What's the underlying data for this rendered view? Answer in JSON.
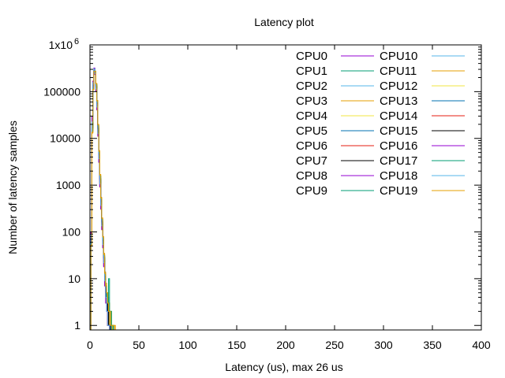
{
  "chart_data": {
    "type": "line",
    "title": "Latency plot",
    "xlabel": "Latency (us), max 26 us",
    "ylabel": "Number of latency samples",
    "xlim": [
      0,
      400
    ],
    "ylim": [
      0.8,
      1000000
    ],
    "yscale": "log",
    "grid": false,
    "legend_position": "top-right",
    "x_ticks": [
      {
        "value": 0,
        "label": "0"
      },
      {
        "value": 50,
        "label": "50"
      },
      {
        "value": 100,
        "label": "100"
      },
      {
        "value": 150,
        "label": "150"
      },
      {
        "value": 200,
        "label": "200"
      },
      {
        "value": 250,
        "label": "250"
      },
      {
        "value": 300,
        "label": "300"
      },
      {
        "value": 350,
        "label": "350"
      },
      {
        "value": 400,
        "label": "400"
      }
    ],
    "y_ticks": [
      {
        "value": 1,
        "label": "1"
      },
      {
        "value": 10,
        "label": "10"
      },
      {
        "value": 100,
        "label": "100"
      },
      {
        "value": 1000,
        "label": "1000"
      },
      {
        "value": 10000,
        "label": "10000"
      },
      {
        "value": 100000,
        "label": "100000"
      }
    ],
    "y_top_label": {
      "value": 1000000,
      "base": "1x10",
      "exp": "6"
    },
    "series": [
      {
        "name": "CPU0",
        "color": "#9400d3",
        "x": [
          0,
          1,
          2,
          3,
          4,
          5,
          6,
          7,
          8,
          9,
          10,
          11,
          12,
          13,
          14,
          15,
          16,
          17,
          18,
          19,
          20,
          21
        ],
        "y": [
          0,
          80,
          20000,
          150000,
          300000,
          250000,
          120000,
          50000,
          15000,
          4000,
          1200,
          400,
          150,
          60,
          25,
          10,
          5,
          3,
          2,
          1,
          1,
          0
        ]
      },
      {
        "name": "CPU1",
        "color": "#009e73",
        "x": [
          0,
          1,
          2,
          3,
          4,
          5,
          6,
          7,
          8,
          9,
          10,
          11,
          12,
          13,
          14,
          15,
          16,
          17,
          18,
          19,
          20,
          21,
          22
        ],
        "y": [
          0,
          60,
          15000,
          120000,
          280000,
          260000,
          130000,
          60000,
          18000,
          5000,
          1500,
          500,
          180,
          70,
          30,
          12,
          6,
          4,
          2,
          2,
          1,
          1,
          0
        ]
      },
      {
        "name": "CPU2",
        "color": "#56b4e9",
        "x": [
          0,
          1,
          2,
          3,
          4,
          5,
          6,
          7,
          8,
          9,
          10,
          11,
          12,
          13,
          14,
          15,
          16,
          17,
          18,
          19,
          20
        ],
        "y": [
          0,
          90,
          25000,
          160000,
          320000,
          240000,
          110000,
          45000,
          12000,
          3500,
          1000,
          350,
          120,
          50,
          20,
          8,
          4,
          2,
          1,
          1,
          0
        ]
      },
      {
        "name": "CPU3",
        "color": "#e69f00",
        "x": [
          0,
          1,
          2,
          3,
          4,
          5,
          6,
          7,
          8,
          9,
          10,
          11,
          12,
          13,
          14,
          15,
          16,
          17,
          18,
          19,
          20,
          21,
          22,
          23
        ],
        "y": [
          0,
          70,
          18000,
          140000,
          300000,
          270000,
          140000,
          55000,
          16000,
          4500,
          1300,
          450,
          160,
          65,
          28,
          11,
          6,
          4,
          3,
          2,
          1,
          1,
          1,
          0
        ]
      },
      {
        "name": "CPU4",
        "color": "#f0e442",
        "x": [
          0,
          1,
          2,
          3,
          4,
          5,
          6,
          7,
          8,
          9,
          10,
          11,
          12,
          13,
          14,
          15,
          16,
          17,
          18,
          19,
          20
        ],
        "y": [
          0,
          100,
          30000,
          170000,
          310000,
          230000,
          100000,
          40000,
          11000,
          3000,
          900,
          300,
          110,
          45,
          18,
          7,
          3,
          2,
          1,
          1,
          0
        ]
      },
      {
        "name": "CPU5",
        "color": "#0072b2",
        "x": [
          0,
          1,
          2,
          3,
          4,
          5,
          6,
          7,
          8,
          9,
          10,
          11,
          12,
          13,
          14,
          15,
          16,
          17,
          18,
          19,
          20,
          21
        ],
        "y": [
          0,
          75,
          19000,
          145000,
          290000,
          255000,
          125000,
          52000,
          15500,
          4200,
          1250,
          420,
          155,
          62,
          26,
          10,
          5,
          3,
          2,
          1,
          1,
          0
        ]
      },
      {
        "name": "CPU6",
        "color": "#e51e10",
        "x": [
          0,
          1,
          2,
          3,
          4,
          5,
          6,
          7,
          8,
          9,
          10,
          11,
          12,
          13,
          14,
          15,
          16,
          17,
          18,
          19,
          20
        ],
        "y": [
          0,
          85,
          22000,
          155000,
          305000,
          245000,
          115000,
          48000,
          13000,
          3800,
          1100,
          380,
          140,
          55,
          22,
          9,
          4,
          2,
          1,
          1,
          0
        ]
      },
      {
        "name": "CPU7",
        "color": "#000000",
        "x": [
          0,
          1,
          2,
          3,
          4,
          5,
          6,
          7,
          8,
          9,
          10,
          11,
          12,
          13,
          14,
          15,
          16,
          17,
          18,
          19,
          20,
          21
        ],
        "y": [
          0,
          65,
          16000,
          130000,
          285000,
          265000,
          135000,
          58000,
          17000,
          4800,
          1400,
          480,
          170,
          68,
          29,
          11,
          5,
          3,
          2,
          1,
          1,
          0
        ]
      },
      {
        "name": "CPU8",
        "color": "#9400d3",
        "x": [
          0,
          1,
          2,
          3,
          4,
          5,
          6,
          7,
          8,
          9,
          10,
          11,
          12,
          13,
          14,
          15,
          16,
          17,
          18,
          19,
          20
        ],
        "y": [
          0,
          95,
          27000,
          165000,
          315000,
          235000,
          105000,
          42000,
          11500,
          3200,
          950,
          320,
          115,
          48,
          19,
          8,
          4,
          2,
          1,
          1,
          0
        ]
      },
      {
        "name": "CPU9",
        "color": "#009e73",
        "x": [
          0,
          1,
          2,
          3,
          4,
          5,
          6,
          7,
          8,
          9,
          10,
          11,
          12,
          13,
          14,
          15,
          16,
          17,
          18,
          19,
          20,
          21,
          22,
          23,
          24
        ],
        "y": [
          0,
          55,
          14000,
          115000,
          275000,
          270000,
          145000,
          62000,
          19000,
          5200,
          1600,
          520,
          190,
          75,
          32,
          13,
          7,
          5,
          4,
          3,
          2,
          2,
          1,
          1,
          0
        ]
      },
      {
        "name": "CPU10",
        "color": "#56b4e9",
        "x": [
          0,
          1,
          2,
          3,
          4,
          5,
          6,
          7,
          8,
          9,
          10,
          11,
          12,
          13,
          14,
          15,
          16,
          17,
          18,
          19,
          20
        ],
        "y": [
          0,
          88,
          23000,
          158000,
          308000,
          242000,
          112000,
          46000,
          12500,
          3600,
          1050,
          360,
          130,
          52,
          21,
          8,
          4,
          2,
          1,
          1,
          0
        ]
      },
      {
        "name": "CPU11",
        "color": "#e69f00",
        "x": [
          0,
          1,
          2,
          3,
          4,
          5,
          6,
          7,
          8,
          9,
          10,
          11,
          12,
          13,
          14,
          15,
          16,
          17,
          18,
          19,
          20,
          21,
          22,
          23,
          24,
          25,
          26
        ],
        "y": [
          0,
          50,
          13000,
          110000,
          270000,
          275000,
          150000,
          65000,
          20000,
          5500,
          1700,
          550,
          200,
          80,
          35,
          14,
          8,
          5,
          4,
          3,
          2,
          2,
          1,
          1,
          1,
          1,
          0
        ]
      },
      {
        "name": "CPU12",
        "color": "#f0e442",
        "x": [
          0,
          1,
          2,
          3,
          4,
          5,
          6,
          7,
          8,
          9,
          10,
          11,
          12,
          13,
          14,
          15,
          16,
          17,
          18,
          19,
          20
        ],
        "y": [
          0,
          92,
          26000,
          162000,
          312000,
          238000,
          108000,
          44000,
          12000,
          3400,
          1000,
          340,
          125,
          50,
          20,
          8,
          4,
          2,
          1,
          1,
          0
        ]
      },
      {
        "name": "CPU13",
        "color": "#0072b2",
        "x": [
          0,
          1,
          2,
          3,
          4,
          5,
          6,
          7,
          8,
          9,
          10,
          11,
          12,
          13,
          14,
          15,
          16,
          17,
          18,
          19,
          20,
          21
        ],
        "y": [
          0,
          72,
          18500,
          142000,
          295000,
          258000,
          128000,
          53000,
          15800,
          4300,
          1280,
          430,
          158,
          63,
          27,
          10,
          5,
          3,
          2,
          1,
          1,
          0
        ]
      },
      {
        "name": "CPU14",
        "color": "#e51e10",
        "x": [
          0,
          1,
          2,
          3,
          4,
          5,
          6,
          7,
          8,
          9,
          10,
          11,
          12,
          13,
          14,
          15,
          16,
          17,
          18,
          19,
          20
        ],
        "y": [
          0,
          82,
          21000,
          152000,
          302000,
          248000,
          118000,
          49000,
          13500,
          3900,
          1150,
          390,
          145,
          57,
          23,
          9,
          4,
          2,
          1,
          1,
          0
        ]
      },
      {
        "name": "CPU15",
        "color": "#000000",
        "x": [
          0,
          1,
          2,
          3,
          4,
          5,
          6,
          7,
          8,
          9,
          10,
          11,
          12,
          13,
          14,
          15,
          16,
          17,
          18,
          19,
          20,
          21
        ],
        "y": [
          0,
          68,
          17000,
          135000,
          288000,
          262000,
          132000,
          56000,
          16500,
          4600,
          1350,
          460,
          165,
          66,
          28,
          11,
          5,
          3,
          2,
          1,
          1,
          0
        ]
      },
      {
        "name": "CPU16",
        "color": "#9400d3",
        "x": [
          0,
          1,
          2,
          3,
          4,
          5,
          6,
          7,
          8,
          9,
          10,
          11,
          12,
          13,
          14,
          15,
          16,
          17,
          18,
          19,
          20
        ],
        "y": [
          0,
          98,
          29000,
          168000,
          318000,
          232000,
          102000,
          41000,
          11200,
          3100,
          920,
          310,
          112,
          46,
          18,
          7,
          3,
          2,
          1,
          1,
          0
        ]
      },
      {
        "name": "CPU17",
        "color": "#009e73",
        "x": [
          0,
          1,
          2,
          3,
          4,
          5,
          6,
          7,
          8,
          9,
          10,
          11,
          12,
          13,
          14,
          15,
          16,
          17,
          18,
          19,
          20,
          21,
          22,
          23,
          24
        ],
        "y": [
          0,
          58,
          14500,
          118000,
          278000,
          268000,
          142000,
          60000,
          18500,
          5000,
          1550,
          510,
          185,
          72,
          31,
          12,
          7,
          4,
          3,
          10,
          2,
          2,
          1,
          1,
          0
        ]
      },
      {
        "name": "CPU18",
        "color": "#56b4e9",
        "x": [
          0,
          1,
          2,
          3,
          4,
          5,
          6,
          7,
          8,
          9,
          10,
          11,
          12,
          13,
          14,
          15,
          16,
          17,
          18,
          19,
          20
        ],
        "y": [
          0,
          86,
          22500,
          156000,
          306000,
          244000,
          114000,
          47000,
          12800,
          3700,
          1080,
          370,
          135,
          54,
          22,
          9,
          4,
          2,
          1,
          1,
          0
        ]
      },
      {
        "name": "CPU19",
        "color": "#e69f00",
        "x": [
          0,
          1,
          2,
          3,
          4,
          5,
          6,
          7,
          8,
          9,
          10,
          11,
          12,
          13,
          14,
          15,
          16,
          17,
          18,
          19,
          20,
          21,
          22,
          23,
          24,
          25
        ],
        "y": [
          0,
          52,
          13500,
          112000,
          272000,
          272000,
          148000,
          63000,
          19500,
          5300,
          1650,
          530,
          195,
          78,
          33,
          13,
          7,
          5,
          3,
          2,
          2,
          1,
          1,
          1,
          1,
          0
        ]
      }
    ]
  }
}
